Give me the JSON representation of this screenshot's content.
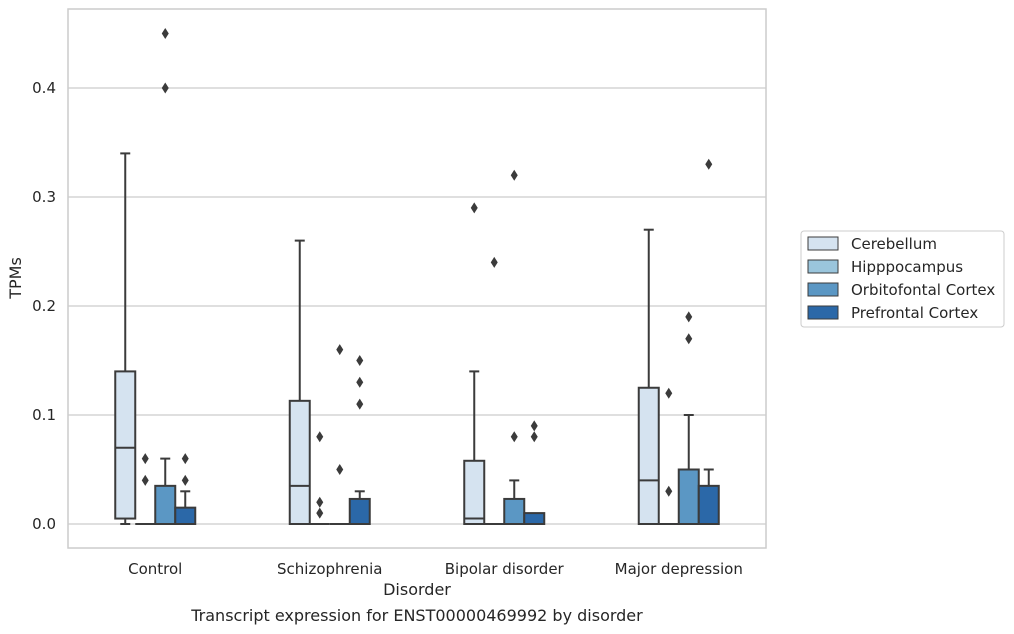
{
  "chart_data": {
    "type": "box",
    "caption": "Transcript expression for ENST00000469992 by disorder",
    "xlabel": "Disorder",
    "ylabel": "TPMs",
    "ylim": [
      -0.022,
      0.475
    ],
    "yticks": [
      0.0,
      0.1,
      0.2,
      0.3,
      0.4
    ],
    "ytick_labels": [
      "0.0",
      "0.1",
      "0.2",
      "0.3",
      "0.4"
    ],
    "grid": "horizontal",
    "legend_position": "right",
    "categories": [
      "Control",
      "Schizophrenia",
      "Bipolar disorder",
      "Major depression"
    ],
    "series": [
      {
        "name": "Cerebellum",
        "color": "#d5e3f0",
        "boxes": [
          {
            "min": 0.0,
            "q1": 0.005,
            "median": 0.07,
            "q3": 0.14,
            "max": 0.34,
            "outliers": []
          },
          {
            "min": 0.0,
            "q1": 0.0,
            "median": 0.035,
            "q3": 0.113,
            "max": 0.26,
            "outliers": []
          },
          {
            "min": 0.0,
            "q1": 0.0,
            "median": 0.005,
            "q3": 0.058,
            "max": 0.14,
            "outliers": [
              0.29
            ]
          },
          {
            "min": 0.0,
            "q1": 0.0,
            "median": 0.04,
            "q3": 0.125,
            "max": 0.27,
            "outliers": []
          }
        ]
      },
      {
        "name": "Hipppocampus",
        "color": "#9ac5dc",
        "boxes": [
          {
            "min": 0.0,
            "q1": 0.0,
            "median": 0.0,
            "q3": 0.0,
            "max": 0.0,
            "outliers": [
              0.04,
              0.06
            ]
          },
          {
            "min": 0.0,
            "q1": 0.0,
            "median": 0.0,
            "q3": 0.0,
            "max": 0.0,
            "outliers": [
              0.01,
              0.02,
              0.08
            ]
          },
          {
            "min": 0.0,
            "q1": 0.0,
            "median": 0.0,
            "q3": 0.0,
            "max": 0.0,
            "outliers": [
              0.24
            ]
          },
          {
            "min": 0.0,
            "q1": 0.0,
            "median": 0.0,
            "q3": 0.0,
            "max": 0.0,
            "outliers": [
              0.03,
              0.12
            ]
          }
        ]
      },
      {
        "name": "Orbitofontal Cortex",
        "color": "#5b97c4",
        "boxes": [
          {
            "min": 0.0,
            "q1": 0.0,
            "median": 0.0,
            "q3": 0.035,
            "max": 0.06,
            "outliers": [
              0.4,
              0.45
            ]
          },
          {
            "min": 0.0,
            "q1": 0.0,
            "median": 0.0,
            "q3": 0.0,
            "max": 0.0,
            "outliers": [
              0.05,
              0.16
            ]
          },
          {
            "min": 0.0,
            "q1": 0.0,
            "median": 0.0,
            "q3": 0.023,
            "max": 0.04,
            "outliers": [
              0.08,
              0.32
            ]
          },
          {
            "min": 0.0,
            "q1": 0.0,
            "median": 0.0,
            "q3": 0.05,
            "max": 0.1,
            "outliers": [
              0.17,
              0.19
            ]
          }
        ]
      },
      {
        "name": "Prefrontal Cortex",
        "color": "#2b68a8",
        "boxes": [
          {
            "min": 0.0,
            "q1": 0.0,
            "median": 0.0,
            "q3": 0.015,
            "max": 0.03,
            "outliers": [
              0.04,
              0.06
            ]
          },
          {
            "min": 0.0,
            "q1": 0.0,
            "median": 0.0,
            "q3": 0.023,
            "max": 0.03,
            "outliers": [
              0.11,
              0.13,
              0.15
            ]
          },
          {
            "min": 0.0,
            "q1": 0.0,
            "median": 0.0,
            "q3": 0.01,
            "max": 0.01,
            "outliers": [
              0.08,
              0.09
            ]
          },
          {
            "min": 0.0,
            "q1": 0.0,
            "median": 0.0,
            "q3": 0.035,
            "max": 0.05,
            "outliers": [
              0.33
            ]
          }
        ]
      }
    ]
  }
}
